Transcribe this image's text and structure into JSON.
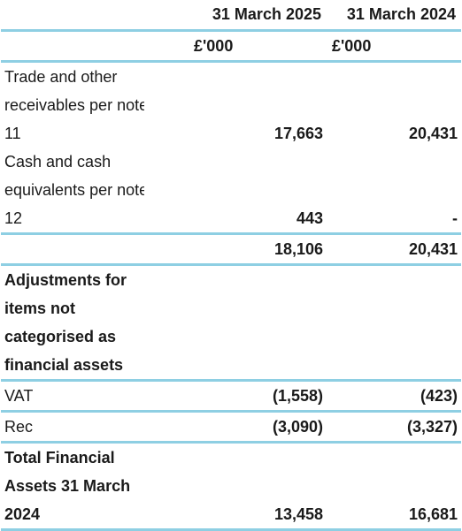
{
  "header": {
    "col_2025": "31 March 2025",
    "col_2024": "31 March 2024",
    "unit_2025": "£'000",
    "unit_2024": "£'000"
  },
  "rows": {
    "receivables": {
      "line1": "Trade and other",
      "line2": "receivables per note",
      "line3": "11",
      "v2025": "17,663",
      "v2024": "20,431"
    },
    "cash": {
      "line1": "Cash and cash",
      "line2": "equivalents per note",
      "line3": "12",
      "v2025": "443",
      "v2024": "-"
    },
    "subtotal": {
      "v2025": "18,106",
      "v2024": "20,431"
    },
    "adjustments": {
      "line1": "Adjustments for",
      "line2": "items not",
      "line3": "categorised as",
      "line4": "financial assets"
    },
    "vat": {
      "label": "VAT",
      "v2025": "(1,558)",
      "v2024": "(423)"
    },
    "rec": {
      "label": "Rec",
      "v2025": "(3,090)",
      "v2024": "(3,327)"
    },
    "total": {
      "line1": "Total Financial",
      "line2": "Assets 31 March",
      "line3": "2024",
      "v2025": "13,458",
      "v2024": "16,681"
    }
  }
}
